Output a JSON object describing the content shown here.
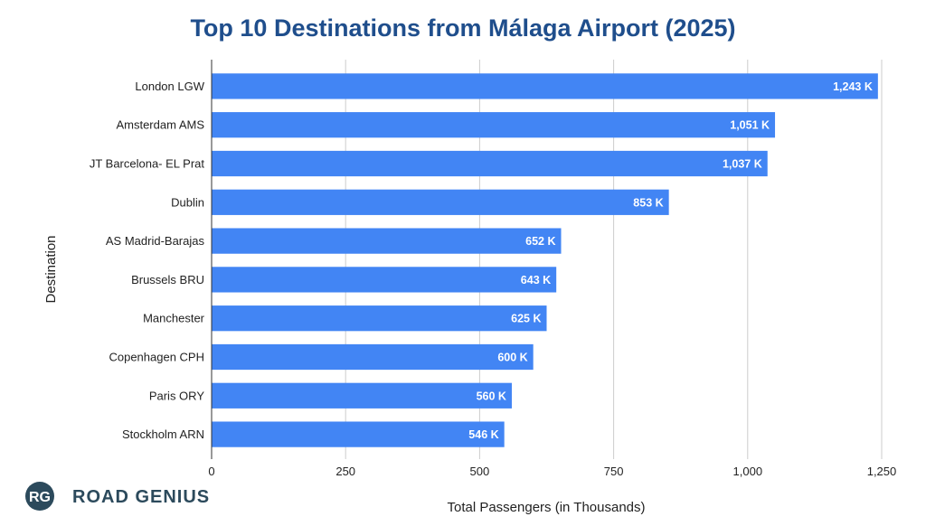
{
  "chart_data": {
    "type": "bar",
    "orientation": "horizontal",
    "title": "Top 10 Destinations from Málaga Airport (2025)",
    "xlabel": "Total Passengers (in Thousands)",
    "ylabel": "Destination",
    "categories": [
      "London LGW",
      "Amsterdam AMS",
      "JT Barcelona- EL Prat",
      "Dublin",
      "AS Madrid-Barajas",
      "Brussels BRU",
      "Manchester",
      "Copenhagen CPH",
      "Paris ORY",
      "Stockholm ARN"
    ],
    "values": [
      1243,
      1051,
      1037,
      853,
      652,
      643,
      625,
      600,
      560,
      546
    ],
    "value_labels": [
      "1,243 K",
      "1,051 K",
      "1,037 K",
      "853 K",
      "652 K",
      "643 K",
      "625 K",
      "600 K",
      "560 K",
      "546 K"
    ],
    "xlim": [
      0,
      1250
    ],
    "xticks": [
      0,
      250,
      500,
      750,
      1000,
      1250
    ],
    "xtick_labels": [
      "0",
      "250",
      "500",
      "750",
      "1,000",
      "1,250"
    ],
    "grid": true,
    "bar_color": "#4285f4",
    "title_color": "#1f4e8c"
  },
  "logo": {
    "badge": "RG",
    "text": "ROAD GENIUS"
  }
}
